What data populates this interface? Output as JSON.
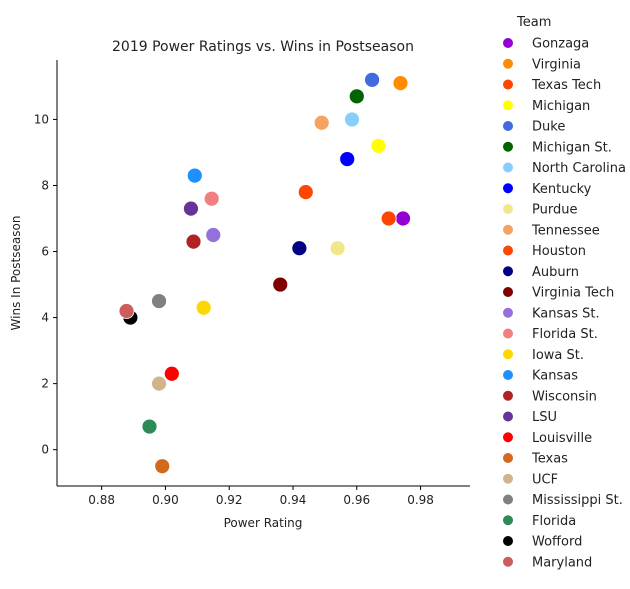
{
  "chart_data": {
    "type": "scatter",
    "title": "2019 Power Ratings vs. Wins in Postseason",
    "xlabel": "Power Rating",
    "ylabel": "Wins In Postseason",
    "xlim": [
      0.866,
      0.9955
    ],
    "ylim": [
      -1.1,
      11.8
    ],
    "xticks": [
      0.88,
      0.9,
      0.92,
      0.94,
      0.96,
      0.98
    ],
    "xtick_labels": [
      "0.88",
      "0.90",
      "0.92",
      "0.94",
      "0.96",
      "0.98"
    ],
    "yticks": [
      0,
      2,
      4,
      6,
      8,
      10
    ],
    "ytick_labels": [
      "0",
      "2",
      "4",
      "6",
      "8",
      "10"
    ],
    "grid": false,
    "legend_title": "Team",
    "legend_position": "right-outside",
    "points": [
      {
        "team": "Gonzaga",
        "x": 0.9745,
        "y": 7.0,
        "color": "#9400D3"
      },
      {
        "team": "Virginia",
        "x": 0.9737,
        "y": 11.1,
        "color": "#FF8C00"
      },
      {
        "team": "Texas Tech",
        "x": 0.97,
        "y": 7.0,
        "color": "#FF4500"
      },
      {
        "team": "Michigan",
        "x": 0.9668,
        "y": 9.2,
        "color": "#FFFF00"
      },
      {
        "team": "Duke",
        "x": 0.9648,
        "y": 11.2,
        "color": "#4169E1"
      },
      {
        "team": "Michigan St.",
        "x": 0.96,
        "y": 10.7,
        "color": "#006400"
      },
      {
        "team": "North Carolina",
        "x": 0.9585,
        "y": 10.0,
        "color": "#87CEFA"
      },
      {
        "team": "Kentucky",
        "x": 0.957,
        "y": 8.8,
        "color": "#0000FF"
      },
      {
        "team": "Purdue",
        "x": 0.954,
        "y": 6.1,
        "color": "#F0E68C"
      },
      {
        "team": "Tennessee",
        "x": 0.949,
        "y": 9.9,
        "color": "#F4A460"
      },
      {
        "team": "Houston",
        "x": 0.944,
        "y": 7.8,
        "color": "#FF4500"
      },
      {
        "team": "Auburn",
        "x": 0.942,
        "y": 6.1,
        "color": "#000080"
      },
      {
        "team": "Virginia Tech",
        "x": 0.936,
        "y": 5.0,
        "color": "#800000"
      },
      {
        "team": "Kansas St.",
        "x": 0.915,
        "y": 6.5,
        "color": "#9370DB"
      },
      {
        "team": "Florida St.",
        "x": 0.9145,
        "y": 7.6,
        "color": "#F08080"
      },
      {
        "team": "Iowa St.",
        "x": 0.912,
        "y": 4.3,
        "color": "#FFD700"
      },
      {
        "team": "Kansas",
        "x": 0.9092,
        "y": 8.3,
        "color": "#1E90FF"
      },
      {
        "team": "Wisconsin",
        "x": 0.9088,
        "y": 6.3,
        "color": "#B22222"
      },
      {
        "team": "LSU",
        "x": 0.908,
        "y": 7.3,
        "color": "#663399"
      },
      {
        "team": "Louisville",
        "x": 0.902,
        "y": 2.3,
        "color": "#FF0000"
      },
      {
        "team": "Texas",
        "x": 0.899,
        "y": -0.5,
        "color": "#D2691E"
      },
      {
        "team": "UCF",
        "x": 0.898,
        "y": 2.0,
        "color": "#D2B48C"
      },
      {
        "team": "Mississippi St.",
        "x": 0.898,
        "y": 4.5,
        "color": "#808080"
      },
      {
        "team": "Florida",
        "x": 0.895,
        "y": 0.7,
        "color": "#2E8B57"
      },
      {
        "team": "Wofford",
        "x": 0.889,
        "y": 4.0,
        "color": "#000000"
      },
      {
        "team": "Maryland",
        "x": 0.8878,
        "y": 4.2,
        "color": "#CD5C5C"
      }
    ]
  }
}
